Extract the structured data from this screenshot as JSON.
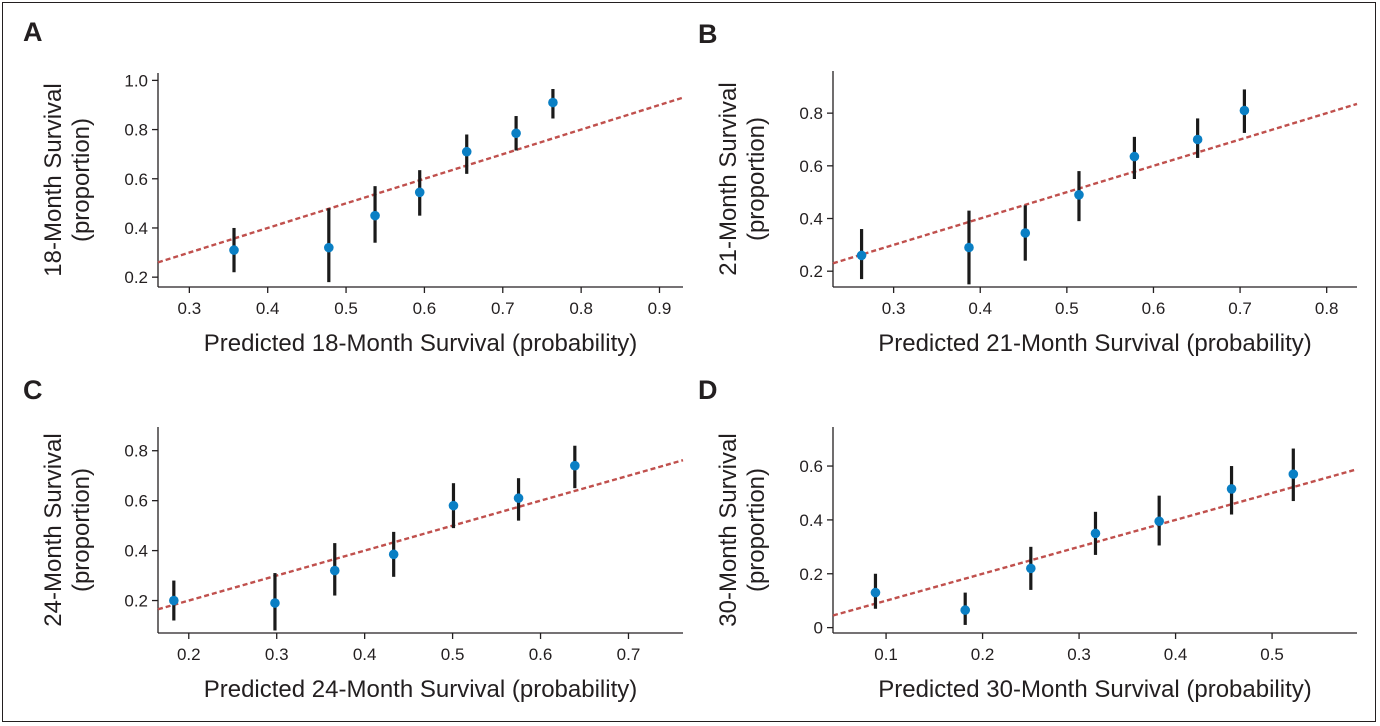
{
  "chart_data": [
    {
      "panel": "A",
      "type": "scatter",
      "xlabel": "Predicted 18-Month Survival (probability)",
      "ylabel_lines": [
        "18-Month Survival",
        "(proportion)"
      ],
      "xlim": [
        0.26,
        0.93
      ],
      "ylim": [
        0.16,
        1.03
      ],
      "xticks": [
        "0.3",
        "0.4",
        "0.5",
        "0.6",
        "0.7",
        "0.8",
        "0.9"
      ],
      "yticks": [
        "0.2",
        "0.4",
        "0.6",
        "0.8",
        "1.0"
      ],
      "reference_line": "identity",
      "points": [
        {
          "x": 0.357,
          "y": 0.31,
          "lo": 0.22,
          "hi": 0.4
        },
        {
          "x": 0.478,
          "y": 0.32,
          "lo": 0.18,
          "hi": 0.48
        },
        {
          "x": 0.537,
          "y": 0.45,
          "lo": 0.34,
          "hi": 0.57
        },
        {
          "x": 0.594,
          "y": 0.545,
          "lo": 0.45,
          "hi": 0.635
        },
        {
          "x": 0.654,
          "y": 0.71,
          "lo": 0.62,
          "hi": 0.78
        },
        {
          "x": 0.717,
          "y": 0.785,
          "lo": 0.715,
          "hi": 0.855
        },
        {
          "x": 0.764,
          "y": 0.91,
          "lo": 0.845,
          "hi": 0.965
        }
      ]
    },
    {
      "panel": "B",
      "type": "scatter",
      "xlabel": "Predicted 21-Month Survival (probability)",
      "ylabel_lines": [
        "21-Month Survival",
        "(proportion)"
      ],
      "xlim": [
        0.23,
        0.835
      ],
      "ylim": [
        0.14,
        0.96
      ],
      "xticks": [
        "0.3",
        "0.4",
        "0.5",
        "0.6",
        "0.7",
        "0.8"
      ],
      "yticks": [
        "0.2",
        "0.4",
        "0.6",
        "0.8"
      ],
      "reference_line": "identity",
      "points": [
        {
          "x": 0.263,
          "y": 0.26,
          "lo": 0.17,
          "hi": 0.36
        },
        {
          "x": 0.387,
          "y": 0.29,
          "lo": 0.15,
          "hi": 0.43
        },
        {
          "x": 0.452,
          "y": 0.345,
          "lo": 0.24,
          "hi": 0.45
        },
        {
          "x": 0.514,
          "y": 0.49,
          "lo": 0.39,
          "hi": 0.58
        },
        {
          "x": 0.578,
          "y": 0.635,
          "lo": 0.55,
          "hi": 0.71
        },
        {
          "x": 0.651,
          "y": 0.7,
          "lo": 0.63,
          "hi": 0.78
        },
        {
          "x": 0.705,
          "y": 0.81,
          "lo": 0.725,
          "hi": 0.89
        }
      ]
    },
    {
      "panel": "C",
      "type": "scatter",
      "xlabel": "Predicted 24-Month Survival (probability)",
      "ylabel_lines": [
        "24-Month Survival",
        "(proportion)"
      ],
      "xlim": [
        0.165,
        0.762
      ],
      "ylim": [
        0.07,
        0.895
      ],
      "xticks": [
        "0.2",
        "0.3",
        "0.4",
        "0.5",
        "0.6",
        "0.7"
      ],
      "yticks": [
        "0.2",
        "0.4",
        "0.6",
        "0.8"
      ],
      "reference_line": "identity",
      "points": [
        {
          "x": 0.183,
          "y": 0.2,
          "lo": 0.12,
          "hi": 0.28
        },
        {
          "x": 0.298,
          "y": 0.19,
          "lo": 0.08,
          "hi": 0.31
        },
        {
          "x": 0.366,
          "y": 0.32,
          "lo": 0.22,
          "hi": 0.43
        },
        {
          "x": 0.433,
          "y": 0.385,
          "lo": 0.295,
          "hi": 0.475
        },
        {
          "x": 0.501,
          "y": 0.58,
          "lo": 0.49,
          "hi": 0.67
        },
        {
          "x": 0.575,
          "y": 0.61,
          "lo": 0.52,
          "hi": 0.69
        },
        {
          "x": 0.639,
          "y": 0.74,
          "lo": 0.65,
          "hi": 0.82
        }
      ]
    },
    {
      "panel": "D",
      "type": "scatter",
      "xlabel": "Predicted 30-Month Survival (probability)",
      "ylabel_lines": [
        "30-Month Survival",
        "(proportion)"
      ],
      "xlim": [
        0.045,
        0.588
      ],
      "ylim": [
        -0.02,
        0.745
      ],
      "xticks": [
        "0.1",
        "0.2",
        "0.3",
        "0.4",
        "0.5"
      ],
      "yticks": [
        "0",
        "0.2",
        "0.4",
        "0.6"
      ],
      "reference_line": "identity",
      "points": [
        {
          "x": 0.089,
          "y": 0.13,
          "lo": 0.07,
          "hi": 0.2
        },
        {
          "x": 0.182,
          "y": 0.065,
          "lo": 0.01,
          "hi": 0.13
        },
        {
          "x": 0.25,
          "y": 0.22,
          "lo": 0.14,
          "hi": 0.3
        },
        {
          "x": 0.317,
          "y": 0.35,
          "lo": 0.27,
          "hi": 0.43
        },
        {
          "x": 0.383,
          "y": 0.395,
          "lo": 0.305,
          "hi": 0.49
        },
        {
          "x": 0.458,
          "y": 0.515,
          "lo": 0.42,
          "hi": 0.6
        },
        {
          "x": 0.522,
          "y": 0.57,
          "lo": 0.47,
          "hi": 0.665
        }
      ]
    }
  ]
}
